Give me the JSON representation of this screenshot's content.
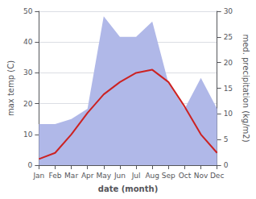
{
  "chart_data": {
    "type": "line",
    "xlabel": "date (month)",
    "ylabel": "max temp (C)",
    "y2label": "med. precipitation (kg/m2)",
    "categories": [
      "Jan",
      "Feb",
      "Mar",
      "Apr",
      "May",
      "Jun",
      "Jul",
      "Aug",
      "Sep",
      "Oct",
      "Nov",
      "Dec"
    ],
    "series": [
      {
        "type": "area",
        "color": "#b0b8e8",
        "axis": "y2",
        "values": [
          8,
          8,
          9,
          11,
          29,
          25,
          25,
          28,
          16,
          11,
          17,
          11
        ]
      },
      {
        "type": "line",
        "color": "#cc2222",
        "values": [
          2,
          4,
          10,
          17,
          23,
          27,
          30,
          31,
          27,
          19,
          10,
          4
        ]
      }
    ],
    "ylim": [
      0,
      50
    ],
    "yticks": [
      0,
      10,
      20,
      30,
      40,
      50
    ],
    "y2lim": [
      0,
      30
    ],
    "y2ticks": [
      0,
      5,
      10,
      15,
      20,
      25,
      30
    ],
    "grid": true
  }
}
